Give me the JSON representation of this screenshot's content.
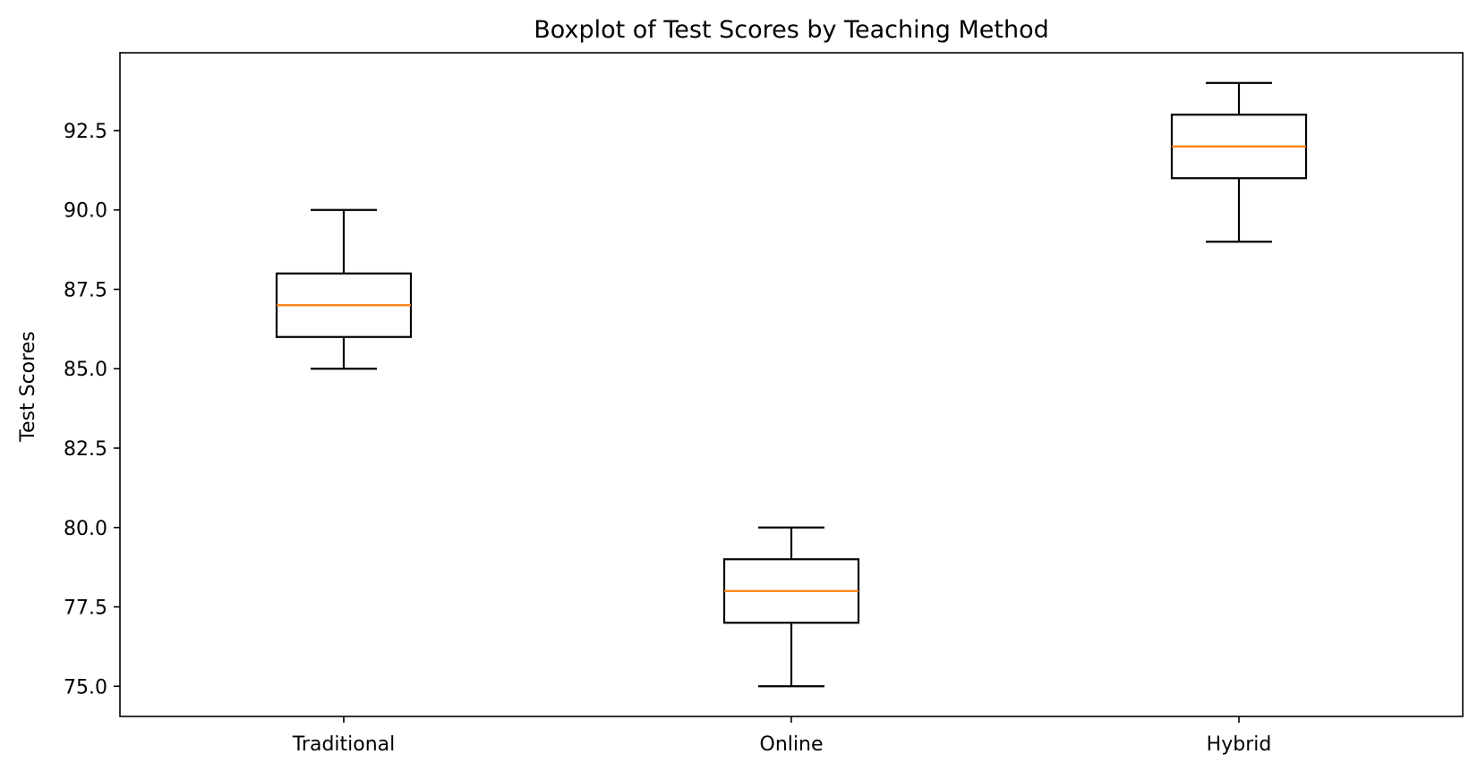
{
  "chart_data": {
    "type": "boxplot",
    "title": "Boxplot of Test Scores by Teaching Method",
    "xlabel": "",
    "ylabel": "Test Scores",
    "categories": [
      "Traditional",
      "Online",
      "Hybrid"
    ],
    "series": [
      {
        "category": "Traditional",
        "whisker_low": 85,
        "q1": 86,
        "median": 87,
        "q3": 88,
        "whisker_high": 90
      },
      {
        "category": "Online",
        "whisker_low": 75,
        "q1": 77,
        "median": 78,
        "q3": 79,
        "whisker_high": 80
      },
      {
        "category": "Hybrid",
        "whisker_low": 89,
        "q1": 91,
        "median": 92,
        "q3": 93,
        "whisker_high": 94
      }
    ],
    "ylim": [
      74.05,
      94.95
    ],
    "yticks": [
      "75.0",
      "77.5",
      "80.0",
      "82.5",
      "85.0",
      "87.5",
      "90.0",
      "92.5"
    ],
    "grid": false,
    "colors": {
      "box": "#000000",
      "median": "#ff7f0e",
      "background": "#ffffff"
    }
  }
}
